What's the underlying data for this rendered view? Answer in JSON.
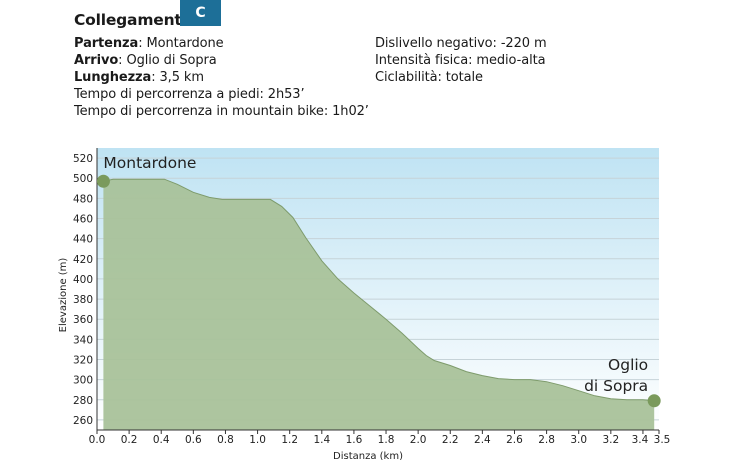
{
  "header": {
    "title": "Collegamento",
    "badge": "C"
  },
  "info": {
    "left": [
      {
        "label": "Partenza",
        "sep": ": ",
        "value": "Montardone"
      },
      {
        "label": "Arrivo",
        "sep": ": ",
        "value": "Oglio di Sopra"
      },
      {
        "label": "Lunghezza",
        "sep": ": ",
        "value": "3,5 km"
      },
      {
        "label": "",
        "sep": "",
        "value": "Tempo di percorrenza a piedi: 2h53’"
      },
      {
        "label": "",
        "sep": "",
        "value": "Tempo di percorrenza in mountain bike: 1h02’"
      }
    ],
    "right": [
      {
        "label": "",
        "sep": "",
        "value": "Dislivello negativo: -220 m"
      },
      {
        "label": "",
        "sep": "",
        "value": "Intensità fisica: medio-alta"
      },
      {
        "label": "",
        "sep": "",
        "value": "Ciclabilità: totale"
      }
    ]
  },
  "colors": {
    "badge": "#1d6f98",
    "area_fill": "#a9c29a",
    "area_stroke": "#7e9b6c",
    "endpoint": "#7a9a5c",
    "sky_top": "#bfe3f3",
    "sky_bottom": "#ffffff",
    "grid": "#c6d3d8"
  },
  "chart_data": {
    "type": "area",
    "xlabel": "Distanza (km)",
    "ylabel": "Elevazione (m)",
    "xlim": [
      0,
      3.5
    ],
    "ylim": [
      250,
      530
    ],
    "x_ticks": [
      "0.0",
      "0.2",
      "0.4",
      "0.6",
      "0.8",
      "1.0",
      "1.2",
      "1.4",
      "1.6",
      "1.8",
      "2.0",
      "2.2",
      "2.4",
      "2.6",
      "2.8",
      "3.0",
      "3.2",
      "3.4",
      "3.5"
    ],
    "y_ticks": [
      "260",
      "280",
      "300",
      "320",
      "340",
      "360",
      "380",
      "400",
      "420",
      "440",
      "460",
      "480",
      "500",
      "520"
    ],
    "grid": true,
    "x": [
      0.04,
      0.1,
      0.2,
      0.3,
      0.42,
      0.5,
      0.6,
      0.7,
      0.78,
      0.9,
      1.0,
      1.08,
      1.15,
      1.22,
      1.3,
      1.4,
      1.5,
      1.6,
      1.7,
      1.8,
      1.9,
      2.0,
      2.05,
      2.1,
      2.2,
      2.3,
      2.4,
      2.5,
      2.6,
      2.7,
      2.8,
      2.9,
      3.0,
      3.1,
      3.2,
      3.3,
      3.4,
      3.47
    ],
    "y": [
      497,
      499,
      499,
      499,
      499,
      494,
      486,
      481,
      479,
      479,
      479,
      479,
      472,
      461,
      441,
      418,
      400,
      386,
      373,
      360,
      346,
      331,
      324,
      319,
      314,
      308,
      304,
      301,
      300,
      300,
      298,
      294,
      289,
      284,
      281,
      280,
      280,
      279
    ],
    "endpoints": [
      {
        "lines": [
          "Montardone"
        ],
        "x": 0.04,
        "y": 497
      },
      {
        "lines": [
          "Oglio",
          "di Sopra"
        ],
        "x": 3.47,
        "y": 279
      }
    ]
  }
}
